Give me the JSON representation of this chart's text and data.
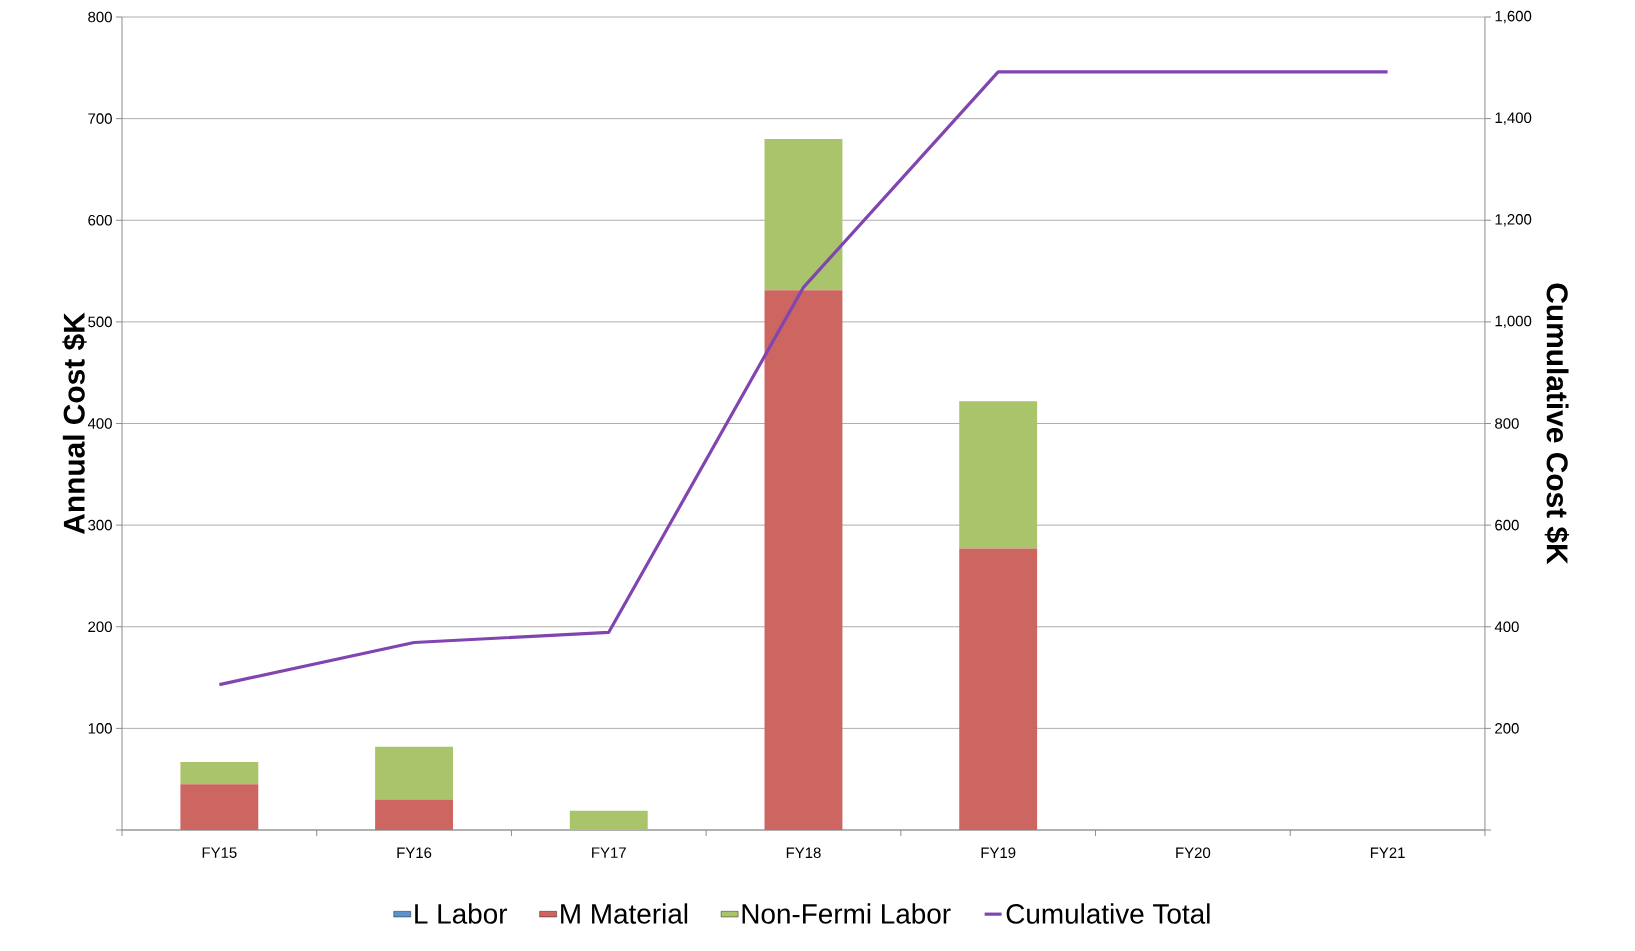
{
  "chart_data": {
    "type": "bar",
    "stacked": true,
    "categories": [
      "FY15",
      "FY16",
      "FY17",
      "FY18",
      "FY19",
      "FY20",
      "FY21"
    ],
    "series": [
      {
        "name": "L Labor",
        "color": "#5b93cc",
        "values": [
          0,
          0,
          0,
          0,
          0,
          0,
          0
        ]
      },
      {
        "name": "M Material",
        "color": "#cd6560",
        "values": [
          45,
          30,
          0,
          531,
          277,
          0,
          0
        ]
      },
      {
        "name": "Non-Fermi Labor",
        "color": "#a9c46a",
        "values": [
          22,
          52,
          19,
          149,
          145,
          0,
          0
        ]
      },
      {
        "name": "Cumulative Total",
        "type": "line",
        "axis": "y2",
        "color": "#8045b0",
        "line_style": "solid",
        "marker": "none",
        "values": [
          286,
          369,
          389,
          1068,
          1492,
          1492,
          1492
        ]
      }
    ],
    "ylabel": "Annual Cost $K",
    "y2label": "Cumulative Cost $K",
    "ylim": [
      0,
      800
    ],
    "yticks": [
      {
        "value": 0,
        "label": null
      },
      100,
      200,
      300,
      400,
      500,
      600,
      700,
      800
    ],
    "y2lim": [
      0,
      1600
    ],
    "y2ticks": [
      {
        "value": 0,
        "label": null
      },
      {
        "value": 200,
        "label": "200"
      },
      {
        "value": 400,
        "label": "400"
      },
      {
        "value": 600,
        "label": "600"
      },
      {
        "value": 800,
        "label": "800"
      },
      {
        "value": 1000,
        "label": "1,000"
      },
      {
        "value": 1200,
        "label": "1,200"
      },
      {
        "value": 1400,
        "label": "1,400"
      },
      {
        "value": 1600,
        "label": "1,600"
      }
    ],
    "grid": "y",
    "legend": "bottom"
  }
}
